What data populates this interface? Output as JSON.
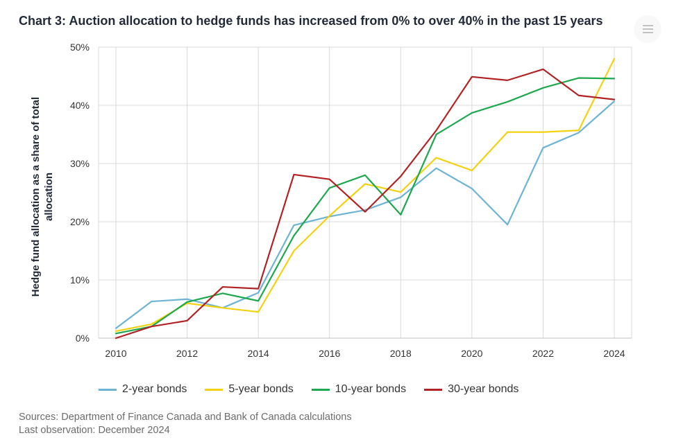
{
  "title": "Chart 3: Auction allocation to hedge funds has increased from 0% to over 40% in the past 15 years",
  "chart_data": {
    "type": "line",
    "title": "Chart 3: Auction allocation to hedge funds has increased from 0% to over 40% in the past 15 years",
    "xlabel": "",
    "ylabel": "Hedge fund allocation as a share of total allocation",
    "x": [
      2010,
      2011,
      2012,
      2013,
      2014,
      2015,
      2016,
      2017,
      2018,
      2019,
      2020,
      2021,
      2022,
      2023,
      2024
    ],
    "x_ticks": [
      "2010",
      "2012",
      "2014",
      "2016",
      "2018",
      "2020",
      "2022",
      "2024"
    ],
    "y_ticks": [
      "0%",
      "10%",
      "20%",
      "30%",
      "40%",
      "50%"
    ],
    "ylim": [
      0,
      50
    ],
    "grid": true,
    "legend_position": "bottom",
    "series": [
      {
        "name": "2-year bonds",
        "color": "#6cb4d4",
        "values": [
          1.7,
          6.3,
          6.7,
          5.2,
          7.8,
          19.4,
          20.9,
          22.0,
          24.2,
          29.2,
          25.7,
          19.5,
          32.7,
          35.3,
          40.7
        ]
      },
      {
        "name": "5-year bonds",
        "color": "#f3d10f",
        "values": [
          1.2,
          2.4,
          6.0,
          5.2,
          4.5,
          15.0,
          21.0,
          26.5,
          25.1,
          31.0,
          28.8,
          35.4,
          35.4,
          35.7,
          48.0
        ]
      },
      {
        "name": "10-year bonds",
        "color": "#1ca84c",
        "values": [
          0.8,
          2.0,
          6.2,
          7.7,
          6.4,
          17.6,
          25.8,
          28.0,
          21.2,
          35.0,
          38.7,
          40.6,
          43.0,
          44.7,
          44.6
        ]
      },
      {
        "name": "30-year bonds",
        "color": "#b22222",
        "values": [
          0.0,
          2.0,
          3.0,
          8.8,
          8.5,
          28.1,
          27.3,
          21.7,
          27.8,
          35.7,
          44.9,
          44.3,
          46.2,
          41.7,
          41.0
        ]
      }
    ]
  },
  "footer": {
    "sources": "Sources: Department of Finance Canada and Bank of Canada calculations",
    "last_observation": "Last observation: December 2024"
  },
  "colors": {
    "grid": "#d9d9d9",
    "axis": "#bfbfbf",
    "text": "#333333"
  }
}
